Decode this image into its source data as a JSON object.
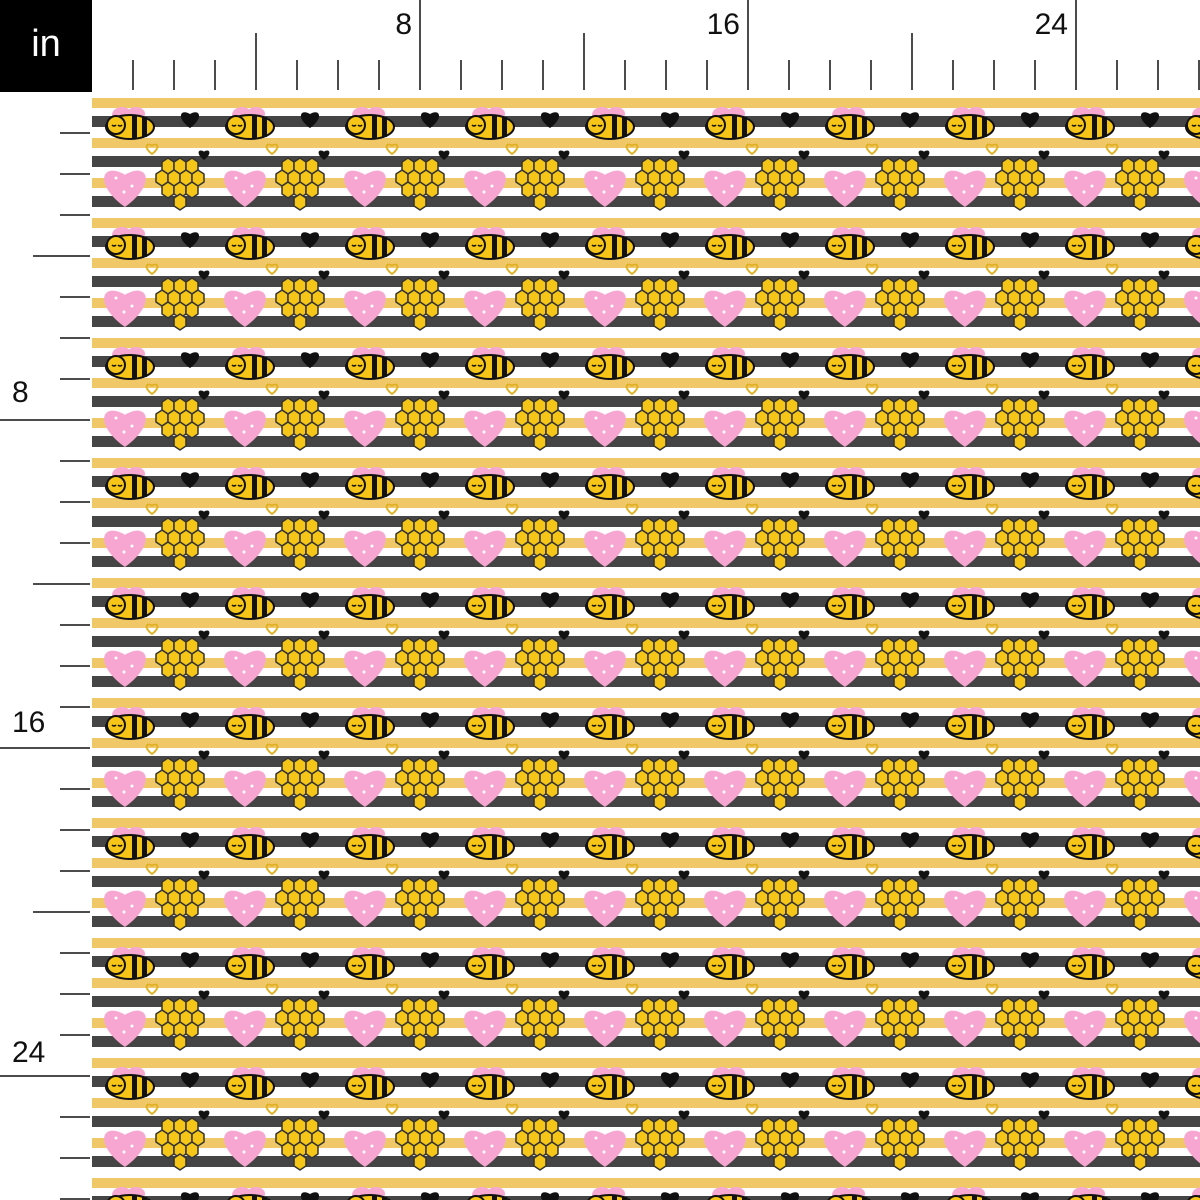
{
  "unit_label": "in",
  "top_ruler": {
    "labels": [
      "8",
      "16",
      "24"
    ]
  },
  "left_ruler": {
    "labels": [
      "8",
      "16",
      "24"
    ]
  }
}
